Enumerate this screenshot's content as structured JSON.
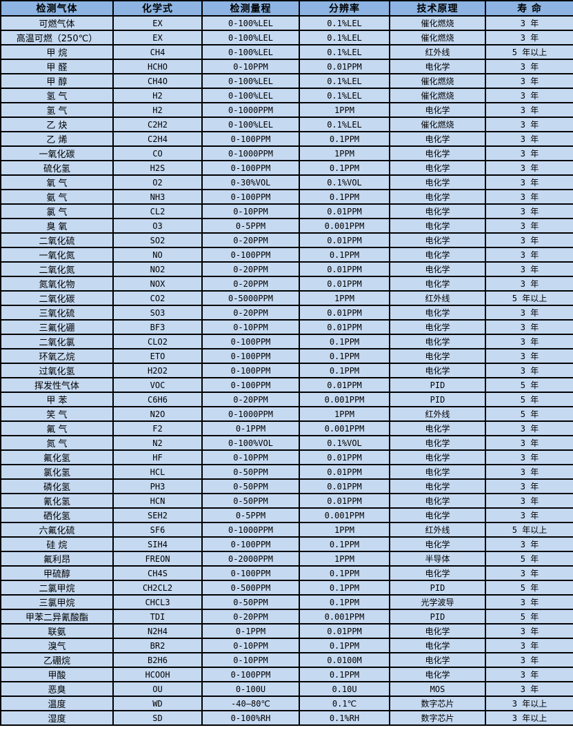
{
  "colors": {
    "header_bg": "#8db4e2",
    "row_bg": "#c5d9f1",
    "border": "#000000",
    "text": "#000000"
  },
  "table": {
    "columns": [
      "检测气体",
      "化学式",
      "检测量程",
      "分辨率",
      "技术原理",
      "寿 命"
    ],
    "rows": [
      [
        "可燃气体",
        "EX",
        "0-100%LEL",
        "0.1%LEL",
        "催化燃烧",
        "3 年"
      ],
      [
        "高温可燃（250℃）",
        "EX",
        "0-100%LEL",
        "0.1%LEL",
        "催化燃烧",
        "3 年"
      ],
      [
        "甲 烷",
        "CH4",
        "0-100%LEL",
        "0.1%LEL",
        "红外线",
        "5 年以上"
      ],
      [
        "甲 醛",
        "HCHO",
        "0-10PPM",
        "0.01PPM",
        "电化学",
        "3 年"
      ],
      [
        "甲 醇",
        "CH4O",
        "0-100%LEL",
        "0.1%LEL",
        "催化燃烧",
        "3 年"
      ],
      [
        "氢 气",
        "H2",
        "0-100%LEL",
        "0.1%LEL",
        "催化燃烧",
        "3 年"
      ],
      [
        "氢 气",
        "H2",
        "0-1000PPM",
        "1PPM",
        "电化学",
        "3 年"
      ],
      [
        "乙 炔",
        "C2H2",
        "0-100%LEL",
        "0.1%LEL",
        "催化燃烧",
        "3 年"
      ],
      [
        "乙 烯",
        "C2H4",
        "0-100PPM",
        "0.1PPM",
        "电化学",
        "3 年"
      ],
      [
        "一氧化碳",
        "CO",
        "0-1000PPM",
        "1PPM",
        "电化学",
        "3 年"
      ],
      [
        "硫化氢",
        "H2S",
        "0-100PPM",
        "0.1PPM",
        "电化学",
        "3 年"
      ],
      [
        "氧 气",
        "O2",
        "0-30%VOL",
        "0.1%VOL",
        "电化学",
        "3 年"
      ],
      [
        "氨 气",
        "NH3",
        "0-100PPM",
        "0.1PPM",
        "电化学",
        "3 年"
      ],
      [
        "氯 气",
        "CL2",
        "0-10PPM",
        "0.01PPM",
        "电化学",
        "3 年"
      ],
      [
        "臭 氧",
        "O3",
        "0-5PPM",
        "0.001PPM",
        "电化学",
        "3 年"
      ],
      [
        "二氧化硫",
        "SO2",
        "0-20PPM",
        "0.01PPM",
        "电化学",
        "3 年"
      ],
      [
        "一氧化氮",
        "NO",
        "0-100PPM",
        "0.1PPM",
        "电化学",
        "3 年"
      ],
      [
        "二氧化氮",
        "NO2",
        "0-20PPM",
        "0.01PPM",
        "电化学",
        "3 年"
      ],
      [
        "氮氧化物",
        "NOX",
        "0-20PPM",
        "0.01PPM",
        "电化学",
        "3 年"
      ],
      [
        "二氧化碳",
        "CO2",
        "0-5000PPM",
        "1PPM",
        "红外线",
        "5 年以上"
      ],
      [
        "三氧化硫",
        "SO3",
        "0-20PPM",
        "0.01PPM",
        "电化学",
        "3 年"
      ],
      [
        "三氟化硼",
        "BF3",
        "0-10PPM",
        "0.01PPM",
        "电化学",
        "3 年"
      ],
      [
        "二氧化氯",
        "CLO2",
        "0-100PPM",
        "0.1PPM",
        "电化学",
        "3 年"
      ],
      [
        "环氧乙烷",
        "ETO",
        "0-100PPM",
        "0.1PPM",
        "电化学",
        "3 年"
      ],
      [
        "过氧化氢",
        "H2O2",
        "0-100PPM",
        "0.1PPM",
        "电化学",
        "3 年"
      ],
      [
        "挥发性气体",
        "VOC",
        "0-100PPM",
        "0.01PPM",
        "PID",
        "5 年"
      ],
      [
        "甲 苯",
        "C6H6",
        "0-20PPM",
        "0.001PPM",
        "PID",
        "5 年"
      ],
      [
        "笑 气",
        "N2O",
        "0-1000PPM",
        "1PPM",
        "红外线",
        "5 年"
      ],
      [
        "氟 气",
        "F2",
        "0-1PPM",
        "0.001PPM",
        "电化学",
        "3 年"
      ],
      [
        "氮 气",
        "N2",
        "0-100%VOL",
        "0.1%VOL",
        "电化学",
        "3 年"
      ],
      [
        "氟化氢",
        "HF",
        "0-10PPM",
        "0.01PPM",
        "电化学",
        "3 年"
      ],
      [
        "氯化氢",
        "HCL",
        "0-50PPM",
        "0.01PPM",
        "电化学",
        "3 年"
      ],
      [
        "磷化氢",
        "PH3",
        "0-50PPM",
        "0.01PPM",
        "电化学",
        "3 年"
      ],
      [
        "氰化氢",
        "HCN",
        "0-50PPM",
        "0.01PPM",
        "电化学",
        "3 年"
      ],
      [
        "硒化氢",
        "SEH2",
        "0-5PPM",
        "0.001PPM",
        "电化学",
        "3 年"
      ],
      [
        "六氟化硫",
        "SF6",
        "0-1000PPM",
        "1PPM",
        "红外线",
        "5 年以上"
      ],
      [
        "硅 烷",
        "SIH4",
        "0-100PPM",
        "0.1PPM",
        "电化学",
        "3 年"
      ],
      [
        "氟利昂",
        "FREON",
        "0-2000PPM",
        "1PPM",
        "半导体",
        "5 年"
      ],
      [
        "甲硫醇",
        "CH4S",
        "0-100PPM",
        "0.1PPM",
        "电化学",
        "3 年"
      ],
      [
        "二氯甲烷",
        "CH2CL2",
        "0-500PPM",
        "0.1PPM",
        "PID",
        "5 年"
      ],
      [
        "三氯甲烷",
        "CHCL3",
        "0-50PPM",
        "0.1PPM",
        "光学波导",
        "3 年"
      ],
      [
        "甲苯二异氰酸酯",
        "TDI",
        "0-20PPM",
        "0.001PPM",
        "PID",
        "5 年"
      ],
      [
        "联氨",
        "N2H4",
        "0-1PPM",
        "0.01PPM",
        "电化学",
        "3 年"
      ],
      [
        "溴气",
        "BR2",
        "0-10PPM",
        "0.1PPM",
        "电化学",
        "3 年"
      ],
      [
        "乙硼烷",
        "B2H6",
        "0-10PPM",
        "0.0100M",
        "电化学",
        "3 年"
      ],
      [
        "甲酸",
        "HCOOH",
        "0-100PPM",
        "0.1PPM",
        "电化学",
        "3 年"
      ],
      [
        "恶臭",
        "OU",
        "0-100U",
        "0.10U",
        "MOS",
        "3 年"
      ],
      [
        "温度",
        "WD",
        "-40—80℃",
        "0.1℃",
        "数字芯片",
        "3 年以上"
      ],
      [
        "湿度",
        "SD",
        "0-100%RH",
        "0.1%RH",
        "数字芯片",
        "3 年以上"
      ]
    ]
  }
}
